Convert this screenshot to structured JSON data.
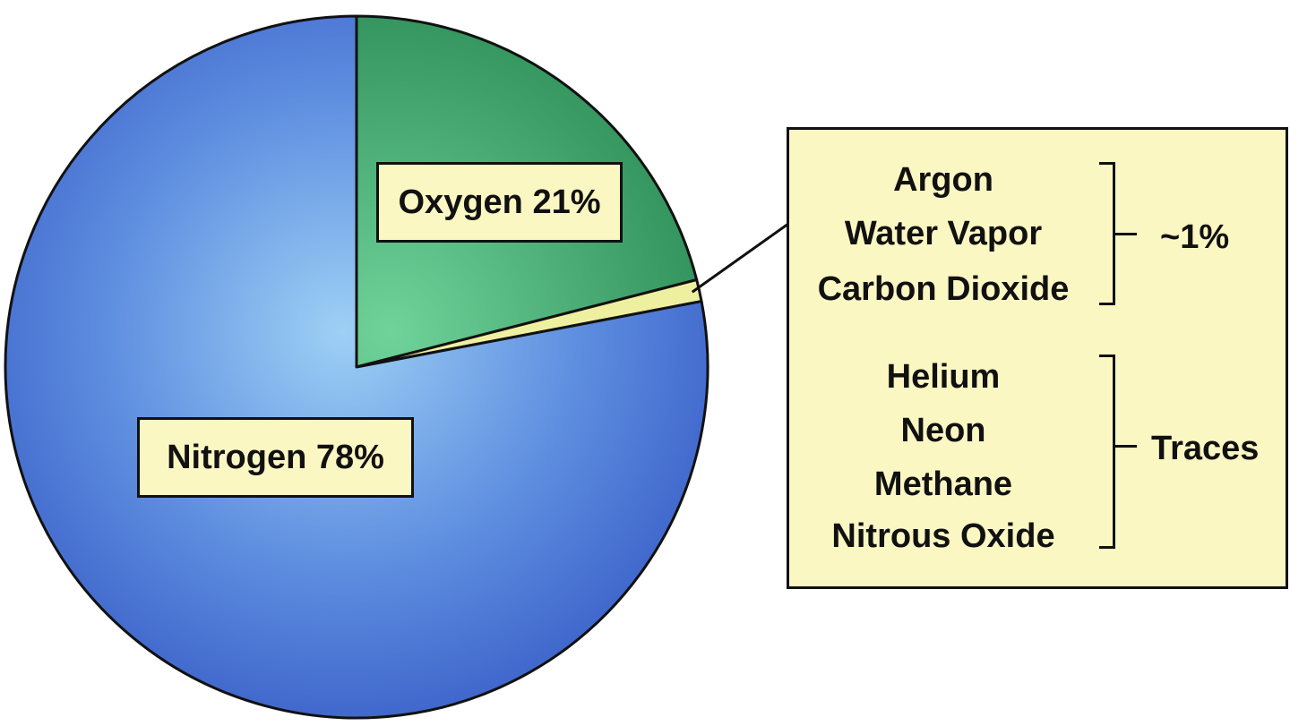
{
  "chart_data": {
    "type": "pie",
    "title": "",
    "slices": [
      {
        "label": "Oxygen",
        "value": 21,
        "display": "Oxygen 21%",
        "color": "#3f9e6a"
      },
      {
        "label": "Other",
        "value": 1,
        "display": "",
        "color": "#eef0a0"
      },
      {
        "label": "Nitrogen",
        "value": 78,
        "display": "Nitrogen 78%",
        "color": "#5d86e0"
      }
    ],
    "start_angle_deg": 0,
    "legend": {
      "groups": [
        {
          "items": [
            "Argon",
            "Water Vapor",
            "Carbon Dioxide"
          ],
          "label": "~1%"
        },
        {
          "items": [
            "Helium",
            "Neon",
            "Methane",
            "Nitrous Oxide"
          ],
          "label": "Traces"
        }
      ]
    }
  }
}
